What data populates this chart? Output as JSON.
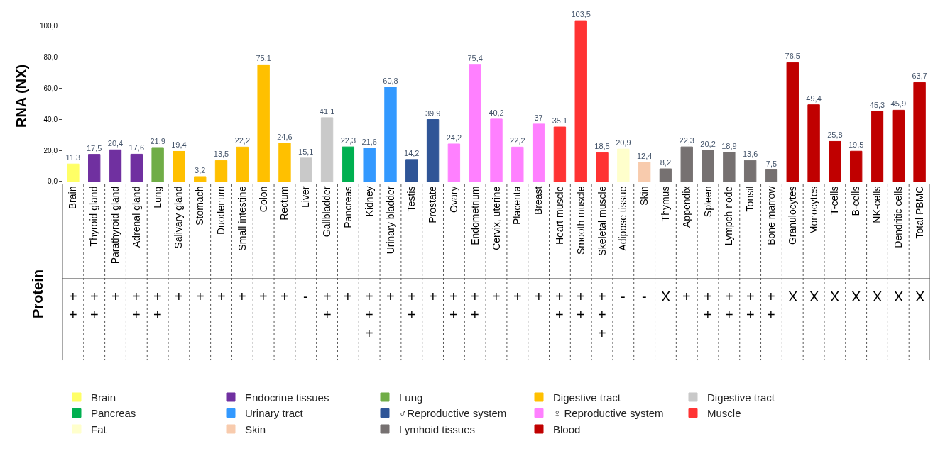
{
  "chart_data": {
    "type": "bar",
    "ylabel": "RNA (NX)",
    "categories": [
      "Brain",
      "Thyroid gland",
      "Parathyroid gland",
      "Adrenal gland",
      "Lung",
      "Salivary gland",
      "Stomach",
      "Duodenum",
      "Small intestine",
      "Colon",
      "Rectum",
      "Liver",
      "Gallbladder",
      "Pancreas",
      "Kidney",
      "Urinary bladder",
      "Testis",
      "Prostate",
      "Ovary",
      "Endometrium",
      "Cervix, uterine",
      "Placenta",
      "Breast",
      "Heart muscle",
      "Smooth muscle",
      "Skeletal muscle",
      "Adipose tissue",
      "Skin",
      "Thymus",
      "Appendix",
      "Spleen",
      "Lympch node",
      "Tonsil",
      "Bone marrow",
      "Granulocytes",
      "Monocytes",
      "T-cells",
      "B-cells",
      "NK-cells",
      "Dendritic cells",
      "Total PBMC"
    ],
    "series": [
      {
        "name": "Brain",
        "color": "#ffff66",
        "values": [
          11.3,
          null,
          null,
          null,
          null,
          null,
          null,
          null,
          null,
          null,
          null,
          null,
          null,
          null,
          null,
          null,
          null,
          null,
          null,
          null,
          null,
          null,
          null,
          null,
          null,
          null,
          null,
          null,
          null,
          null,
          null,
          null,
          null,
          null,
          null,
          null,
          null,
          null,
          null,
          null,
          null
        ]
      },
      {
        "name": "Endocrine tissues",
        "color": "#7030a0",
        "values": [
          null,
          17.5,
          20.4,
          17.6,
          null,
          null,
          null,
          null,
          null,
          null,
          null,
          null,
          null,
          null,
          null,
          null,
          null,
          null,
          null,
          null,
          null,
          null,
          null,
          null,
          null,
          null,
          null,
          null,
          null,
          null,
          null,
          null,
          null,
          null,
          null,
          null,
          null,
          null,
          null,
          null,
          null
        ]
      },
      {
        "name": "Lung",
        "color": "#70ad47",
        "values": [
          null,
          null,
          null,
          null,
          21.9,
          null,
          null,
          null,
          null,
          null,
          null,
          null,
          null,
          null,
          null,
          null,
          null,
          null,
          null,
          null,
          null,
          null,
          null,
          null,
          null,
          null,
          null,
          null,
          null,
          null,
          null,
          null,
          null,
          null,
          null,
          null,
          null,
          null,
          null,
          null,
          null
        ]
      },
      {
        "name": "Digestive tract",
        "color": "#ffc000",
        "values": [
          null,
          null,
          null,
          null,
          null,
          19.4,
          3.2,
          13.5,
          22.2,
          75.1,
          24.6,
          null,
          null,
          null,
          null,
          null,
          null,
          null,
          null,
          null,
          null,
          null,
          null,
          null,
          null,
          null,
          null,
          null,
          null,
          null,
          null,
          null,
          null,
          null,
          null,
          null,
          null,
          null,
          null,
          null,
          null
        ]
      },
      {
        "name": "Digestive tract",
        "color": "#c9c9c9",
        "values": [
          null,
          null,
          null,
          null,
          null,
          null,
          null,
          null,
          null,
          null,
          null,
          15.1,
          41.1,
          null,
          null,
          null,
          null,
          null,
          null,
          null,
          null,
          null,
          null,
          null,
          null,
          null,
          null,
          null,
          null,
          null,
          null,
          null,
          null,
          null,
          null,
          null,
          null,
          null,
          null,
          null,
          null
        ]
      },
      {
        "name": "Pancreas",
        "color": "#00b050",
        "values": [
          null,
          null,
          null,
          null,
          null,
          null,
          null,
          null,
          null,
          null,
          null,
          null,
          null,
          22.3,
          null,
          null,
          null,
          null,
          null,
          null,
          null,
          null,
          null,
          null,
          null,
          null,
          null,
          null,
          null,
          null,
          null,
          null,
          null,
          null,
          null,
          null,
          null,
          null,
          null,
          null,
          null
        ]
      },
      {
        "name": "Urinary tract",
        "color": "#3399ff",
        "values": [
          null,
          null,
          null,
          null,
          null,
          null,
          null,
          null,
          null,
          null,
          null,
          null,
          null,
          null,
          21.6,
          60.8,
          null,
          null,
          null,
          null,
          null,
          null,
          null,
          null,
          null,
          null,
          null,
          null,
          null,
          null,
          null,
          null,
          null,
          null,
          null,
          null,
          null,
          null,
          null,
          null,
          null
        ]
      },
      {
        "name": "♂Reproductive system",
        "color": "#2f5597",
        "values": [
          null,
          null,
          null,
          null,
          null,
          null,
          null,
          null,
          null,
          null,
          null,
          null,
          null,
          null,
          null,
          null,
          14.2,
          39.9,
          null,
          null,
          null,
          null,
          null,
          null,
          null,
          null,
          null,
          null,
          null,
          null,
          null,
          null,
          null,
          null,
          null,
          null,
          null,
          null,
          null,
          null,
          null
        ]
      },
      {
        "name": "♀ Reproductive system",
        "color": "#ff80ff",
        "values": [
          null,
          null,
          null,
          null,
          null,
          null,
          null,
          null,
          null,
          null,
          null,
          null,
          null,
          null,
          null,
          null,
          null,
          null,
          24.2,
          75.4,
          40.2,
          22.2,
          37,
          null,
          null,
          null,
          null,
          null,
          null,
          null,
          null,
          null,
          null,
          null,
          null,
          null,
          null,
          null,
          null,
          null,
          null
        ]
      },
      {
        "name": "Muscle",
        "color": "#ff3333",
        "values": [
          null,
          null,
          null,
          null,
          null,
          null,
          null,
          null,
          null,
          null,
          null,
          null,
          null,
          null,
          null,
          null,
          null,
          null,
          null,
          null,
          null,
          null,
          null,
          35.1,
          103.5,
          18.5,
          null,
          null,
          null,
          null,
          null,
          null,
          null,
          null,
          null,
          null,
          null,
          null,
          null,
          null,
          null
        ]
      },
      {
        "name": "Fat",
        "color": "#ffffcc",
        "values": [
          null,
          null,
          null,
          null,
          null,
          null,
          null,
          null,
          null,
          null,
          null,
          null,
          null,
          null,
          null,
          null,
          null,
          null,
          null,
          null,
          null,
          null,
          null,
          null,
          null,
          null,
          20.9,
          null,
          null,
          null,
          null,
          null,
          null,
          null,
          null,
          null,
          null,
          null,
          null,
          null,
          null
        ]
      },
      {
        "name": "Skin",
        "color": "#f8cbad",
        "values": [
          null,
          null,
          null,
          null,
          null,
          null,
          null,
          null,
          null,
          null,
          null,
          null,
          null,
          null,
          null,
          null,
          null,
          null,
          null,
          null,
          null,
          null,
          null,
          null,
          null,
          null,
          null,
          12.4,
          null,
          null,
          null,
          null,
          null,
          null,
          null,
          null,
          null,
          null,
          null,
          null,
          null
        ]
      },
      {
        "name": "Lymhoid tissues",
        "color": "#767171",
        "values": [
          null,
          null,
          null,
          null,
          null,
          null,
          null,
          null,
          null,
          null,
          null,
          null,
          null,
          null,
          null,
          null,
          null,
          null,
          null,
          null,
          null,
          null,
          null,
          null,
          null,
          null,
          null,
          null,
          8.2,
          22.3,
          20.2,
          18.9,
          13.6,
          7.5,
          null,
          null,
          null,
          null,
          null,
          null,
          null
        ]
      },
      {
        "name": "Blood",
        "color": "#c00000",
        "values": [
          null,
          null,
          null,
          null,
          null,
          null,
          null,
          null,
          null,
          null,
          null,
          null,
          null,
          null,
          null,
          null,
          null,
          null,
          null,
          null,
          null,
          null,
          null,
          null,
          null,
          null,
          null,
          null,
          null,
          null,
          null,
          null,
          null,
          null,
          76.5,
          49.4,
          25.8,
          19.5,
          45.3,
          45.9,
          63.7
        ]
      }
    ],
    "value_labels": [
      "11,3",
      "17,5",
      "20,4",
      "17,6",
      "21,9",
      "19,4",
      "3,2",
      "13,5",
      "22,2",
      "75,1",
      "24,6",
      "15,1",
      "41,1",
      "22,3",
      "21,6",
      "60,8",
      "14,2",
      "39,9",
      "24,2",
      "75,4",
      "40,2",
      "22,2",
      "37",
      "35,1",
      "103,5",
      "18,5",
      "20,9",
      "12,4",
      "8,2",
      "22,3",
      "20,2",
      "18,9",
      "13,6",
      "7,5",
      "76,5",
      "49,4",
      "25,8",
      "19,5",
      "45,3",
      "45,9",
      "63,7"
    ],
    "ylim": [
      0,
      110
    ],
    "yticks": [
      {
        "value": 0,
        "label": "0,0"
      },
      {
        "value": 20,
        "label": "20,0"
      },
      {
        "value": 40,
        "label": "40,0"
      },
      {
        "value": 60,
        "label": "60,0"
      },
      {
        "value": 80,
        "label": "80,0"
      },
      {
        "value": 100,
        "label": "100,0"
      }
    ],
    "legend": "bottom",
    "annotations": [
      "Protein",
      "+\n+",
      "+\n+",
      "+",
      "+\n+",
      "+\n+",
      "+",
      "+",
      "+",
      "+",
      "+",
      "+",
      "-",
      "+\n+",
      "+",
      "+\n+\n+",
      "+",
      "+\n+",
      "+",
      "+\n+",
      "+\n+",
      "+",
      "+",
      "+",
      "+\n+",
      "+\n+",
      "+\n+\n+",
      "-",
      "-",
      "X",
      "+",
      "+\n+",
      "+\n+",
      "+\n+",
      "+\n+",
      "X",
      "X",
      "X",
      "X",
      "X",
      "X",
      "X"
    ]
  }
}
